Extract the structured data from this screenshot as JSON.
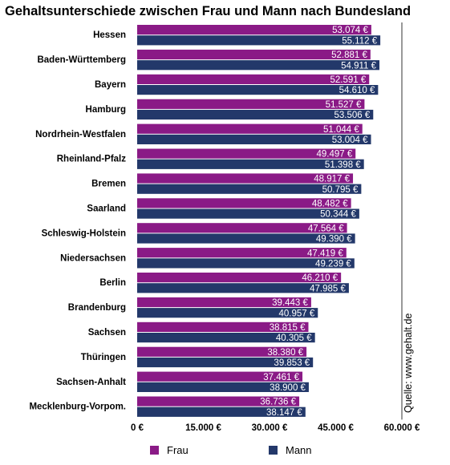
{
  "chart_data": {
    "type": "bar",
    "orientation": "horizontal",
    "title": "Gehaltsunterschiede zwischen Frau und Mann nach Bundesland",
    "categories": [
      "Hessen",
      "Baden-Württemberg",
      "Bayern",
      "Hamburg",
      "Nordrhein-Westfalen",
      "Rheinland-Pfalz",
      "Bremen",
      "Saarland",
      "Schleswig-Holstein",
      "Niedersachsen",
      "Berlin",
      "Brandenburg",
      "Sachsen",
      "Thüringen",
      "Sachsen-Anhalt",
      "Mecklenburg-Vorpom."
    ],
    "series": [
      {
        "name": "Frau",
        "color": "#8a1a86",
        "values": [
          53074,
          52881,
          52591,
          51527,
          51044,
          49497,
          48917,
          48482,
          47564,
          47419,
          46210,
          39443,
          38815,
          38380,
          37461,
          36736
        ],
        "labels": [
          "53.074 €",
          "52.881 €",
          "52.591 €",
          "51.527 €",
          "51.044 €",
          "49.497 €",
          "48.917 €",
          "48.482 €",
          "47.564 €",
          "47.419 €",
          "46.210 €",
          "39.443 €",
          "38.815 €",
          "38.380 €",
          "37.461 €",
          "36.736 €"
        ]
      },
      {
        "name": "Mann",
        "color": "#23386a",
        "values": [
          55112,
          54911,
          54610,
          53506,
          53004,
          51398,
          50795,
          50344,
          49390,
          49239,
          47985,
          40957,
          40305,
          39853,
          38900,
          38147
        ],
        "labels": [
          "55.112 €",
          "54.911 €",
          "54.610 €",
          "53.506 €",
          "53.004 €",
          "51.398 €",
          "50.795 €",
          "50.344 €",
          "49.390 €",
          "49.239 €",
          "47.985 €",
          "40.957 €",
          "40.305 €",
          "39.853 €",
          "38.900 €",
          "38.147 €"
        ]
      }
    ],
    "xlim": [
      0,
      60000
    ],
    "xticks": [
      0,
      15000,
      30000,
      45000,
      60000
    ],
    "xtick_labels": [
      "0 €",
      "15.000 €",
      "30.000 €",
      "45.000 €",
      "60.000 €"
    ],
    "grid": "vertical line at 60.000 €",
    "legend": "bottom",
    "source": "Quelle: www.gehalt.de"
  }
}
